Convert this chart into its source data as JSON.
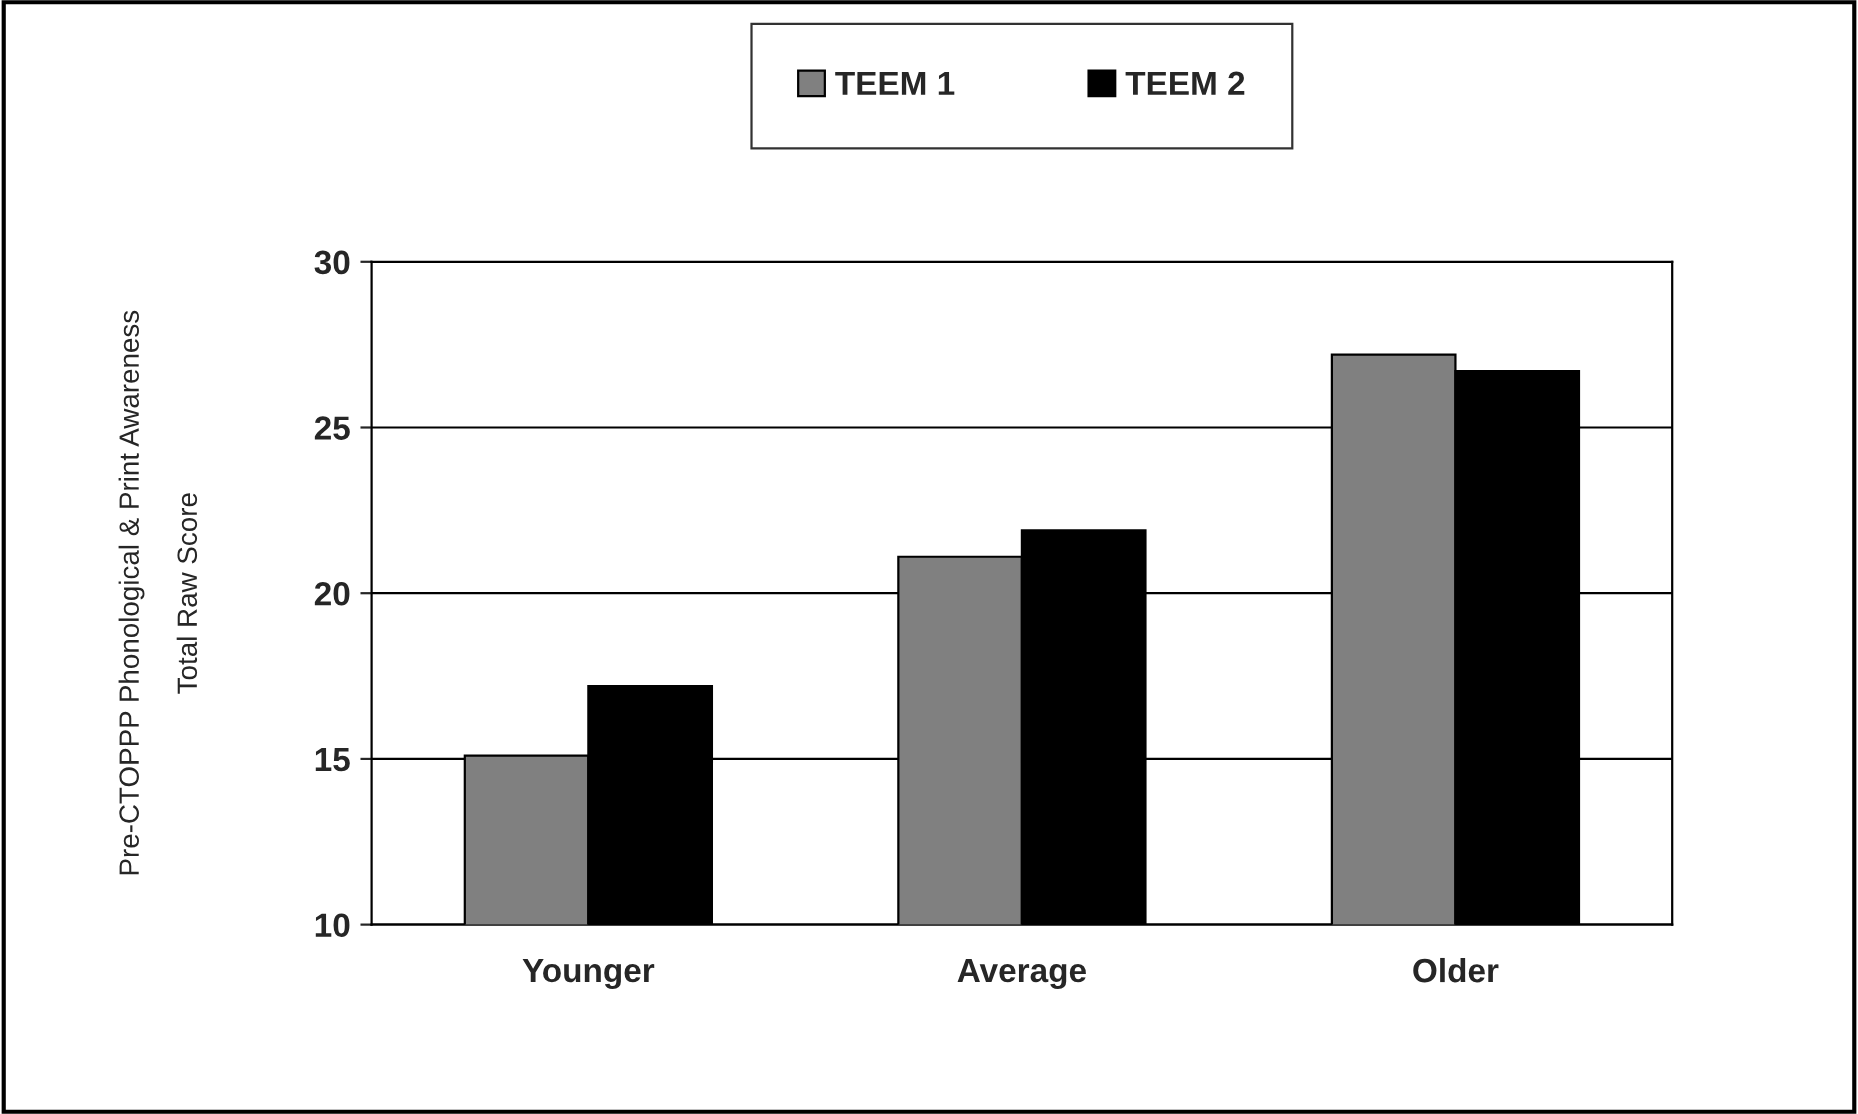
{
  "chart_data": {
    "type": "bar",
    "ylabel": "Pre-CTOPPP Phonological & Print Awareness\nTotal Raw Score",
    "categories": [
      "Younger",
      "Average",
      "Older"
    ],
    "series": [
      {
        "name": "TEEM 1",
        "color": "#808080",
        "values": [
          15.1,
          21.1,
          27.2
        ]
      },
      {
        "name": "TEEM 2",
        "color": "#000000",
        "values": [
          17.2,
          21.9,
          26.7
        ]
      }
    ],
    "ylim": [
      10,
      30
    ],
    "yticks": [
      10,
      15,
      20,
      25,
      30
    ],
    "grid": "y",
    "legend": "top"
  }
}
